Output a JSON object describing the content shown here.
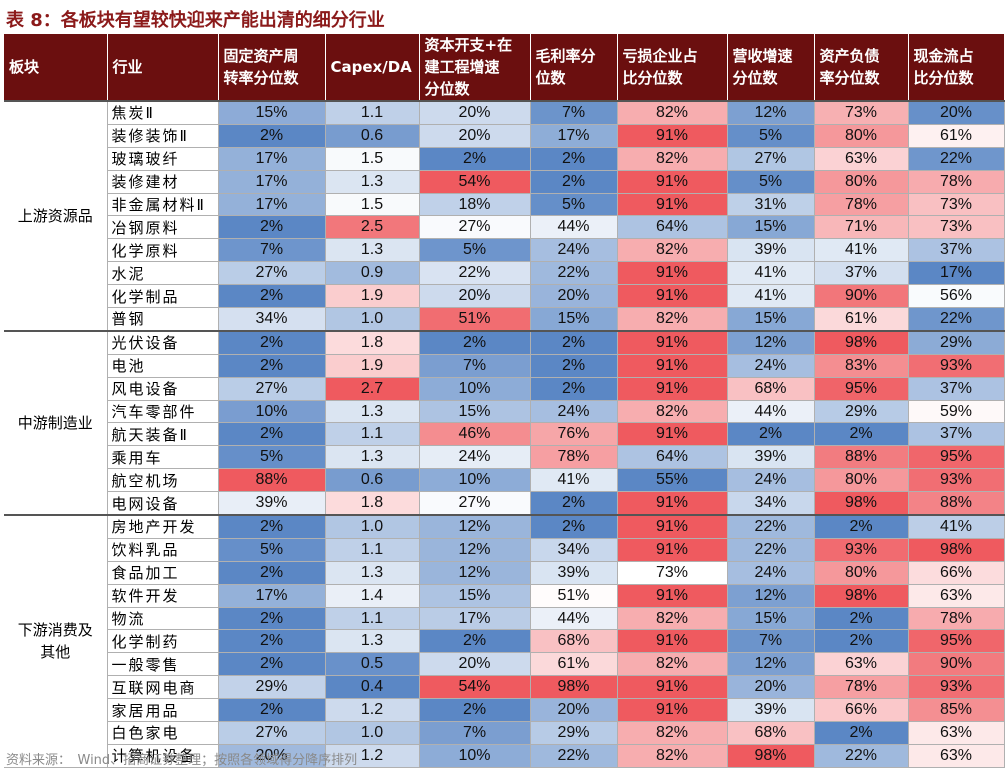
{
  "title": "表 8：各板块有望较快迎来产能出清的细分行业",
  "headers": {
    "sector": "板块",
    "industry": "行业",
    "metrics": [
      [
        "固定资产周",
        "转率分位数"
      ],
      [
        "Capex/DA"
      ],
      [
        "资本开支+在",
        "建工程增速",
        "分位数"
      ],
      [
        "毛利率分",
        "位数"
      ],
      [
        "亏损企业占",
        "比分位数"
      ],
      [
        "营收增速",
        "分位数"
      ],
      [
        "资产负债",
        "率分位数"
      ],
      [
        "现金流占",
        "比分位数"
      ]
    ]
  },
  "groups": [
    {
      "name": [
        "上游资源品"
      ],
      "rows": [
        {
          "industry": "焦炭Ⅱ",
          "values": [
            "15%",
            "1.1",
            "20%",
            "7%",
            "82%",
            "12%",
            "73%",
            "20%"
          ]
        },
        {
          "industry": "装修装饰Ⅱ",
          "values": [
            "2%",
            "0.6",
            "20%",
            "17%",
            "91%",
            "5%",
            "80%",
            "61%"
          ]
        },
        {
          "industry": "玻璃玻纤",
          "values": [
            "17%",
            "1.5",
            "2%",
            "2%",
            "82%",
            "27%",
            "63%",
            "22%"
          ]
        },
        {
          "industry": "装修建材",
          "values": [
            "17%",
            "1.3",
            "54%",
            "2%",
            "91%",
            "5%",
            "80%",
            "78%"
          ]
        },
        {
          "industry": "非金属材料Ⅱ",
          "values": [
            "17%",
            "1.5",
            "18%",
            "5%",
            "91%",
            "31%",
            "78%",
            "73%"
          ]
        },
        {
          "industry": "冶钢原料",
          "values": [
            "2%",
            "2.5",
            "27%",
            "44%",
            "64%",
            "15%",
            "71%",
            "73%"
          ]
        },
        {
          "industry": "化学原料",
          "values": [
            "7%",
            "1.3",
            "5%",
            "24%",
            "82%",
            "39%",
            "41%",
            "37%"
          ]
        },
        {
          "industry": "水泥",
          "values": [
            "27%",
            "0.9",
            "22%",
            "22%",
            "91%",
            "41%",
            "37%",
            "17%"
          ]
        },
        {
          "industry": "化学制品",
          "values": [
            "2%",
            "1.9",
            "20%",
            "20%",
            "91%",
            "41%",
            "90%",
            "56%"
          ]
        },
        {
          "industry": "普钢",
          "values": [
            "34%",
            "1.0",
            "51%",
            "15%",
            "82%",
            "15%",
            "61%",
            "22%"
          ]
        }
      ]
    },
    {
      "name": [
        "中游制造业"
      ],
      "rows": [
        {
          "industry": "光伏设备",
          "values": [
            "2%",
            "1.8",
            "2%",
            "2%",
            "91%",
            "12%",
            "98%",
            "29%"
          ]
        },
        {
          "industry": "电池",
          "values": [
            "2%",
            "1.9",
            "7%",
            "2%",
            "91%",
            "24%",
            "83%",
            "93%"
          ]
        },
        {
          "industry": "风电设备",
          "values": [
            "27%",
            "2.7",
            "10%",
            "2%",
            "91%",
            "68%",
            "95%",
            "37%"
          ]
        },
        {
          "industry": "汽车零部件",
          "values": [
            "10%",
            "1.3",
            "15%",
            "24%",
            "82%",
            "44%",
            "29%",
            "59%"
          ]
        },
        {
          "industry": "航天装备Ⅱ",
          "values": [
            "2%",
            "1.1",
            "46%",
            "76%",
            "91%",
            "2%",
            "2%",
            "37%"
          ]
        },
        {
          "industry": "乘用车",
          "values": [
            "5%",
            "1.3",
            "24%",
            "78%",
            "64%",
            "39%",
            "88%",
            "95%"
          ]
        },
        {
          "industry": "航空机场",
          "values": [
            "88%",
            "0.6",
            "10%",
            "41%",
            "55%",
            "24%",
            "80%",
            "93%"
          ]
        },
        {
          "industry": "电网设备",
          "values": [
            "39%",
            "1.8",
            "27%",
            "2%",
            "91%",
            "34%",
            "98%",
            "88%"
          ]
        }
      ]
    },
    {
      "name": [
        "下游消费及",
        "其他"
      ],
      "rows": [
        {
          "industry": "房地产开发",
          "values": [
            "2%",
            "1.0",
            "12%",
            "2%",
            "91%",
            "22%",
            "2%",
            "41%"
          ]
        },
        {
          "industry": "饮料乳品",
          "values": [
            "5%",
            "1.1",
            "12%",
            "34%",
            "91%",
            "22%",
            "93%",
            "98%"
          ]
        },
        {
          "industry": "食品加工",
          "values": [
            "2%",
            "1.3",
            "12%",
            "39%",
            "73%",
            "24%",
            "80%",
            "66%"
          ]
        },
        {
          "industry": "软件开发",
          "values": [
            "17%",
            "1.4",
            "15%",
            "51%",
            "91%",
            "12%",
            "98%",
            "63%"
          ]
        },
        {
          "industry": "物流",
          "values": [
            "2%",
            "1.1",
            "17%",
            "44%",
            "82%",
            "15%",
            "2%",
            "78%"
          ]
        },
        {
          "industry": "化学制药",
          "values": [
            "2%",
            "1.3",
            "2%",
            "68%",
            "91%",
            "7%",
            "2%",
            "95%"
          ]
        },
        {
          "industry": "一般零售",
          "values": [
            "2%",
            "0.5",
            "20%",
            "61%",
            "82%",
            "12%",
            "63%",
            "90%"
          ]
        },
        {
          "industry": "互联网电商",
          "values": [
            "29%",
            "0.4",
            "54%",
            "98%",
            "91%",
            "20%",
            "78%",
            "93%"
          ]
        },
        {
          "industry": "家居用品",
          "values": [
            "2%",
            "1.2",
            "2%",
            "20%",
            "91%",
            "39%",
            "66%",
            "85%"
          ]
        },
        {
          "industry": "白色家电",
          "values": [
            "27%",
            "1.0",
            "7%",
            "29%",
            "82%",
            "68%",
            "2%",
            "63%"
          ]
        },
        {
          "industry": "计算机设备",
          "values": [
            "20%",
            "1.2",
            "10%",
            "22%",
            "82%",
            "98%",
            "22%",
            "63%"
          ]
        }
      ]
    }
  ],
  "footer": "资料来源：　Wind、招商证券整理；按照各领域得分降序排列",
  "colors": {
    "header_bg": "#6b0f0f",
    "title": "#8b1a1a",
    "scale_low": "#5b87c5",
    "scale_mid": "#ffffff",
    "scale_high": "#ef5a5f"
  }
}
